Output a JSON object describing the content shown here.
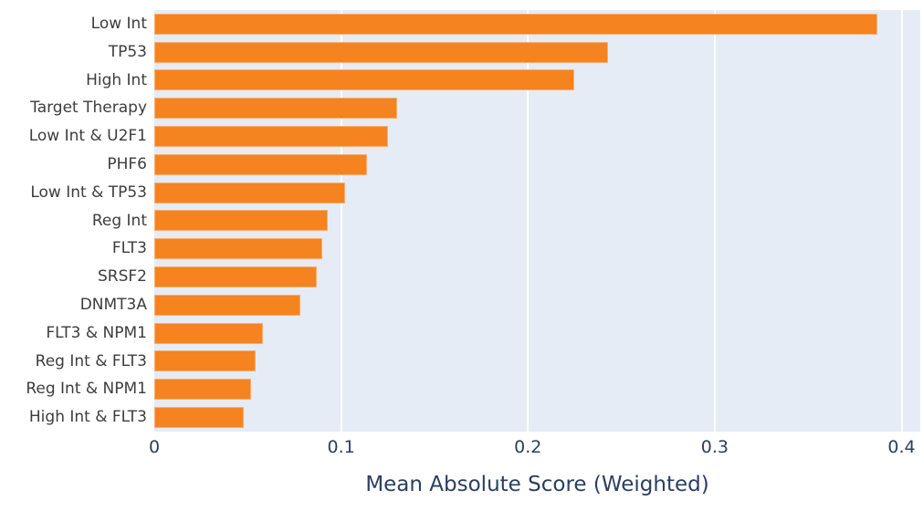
{
  "chart_data": {
    "type": "bar",
    "orientation": "horizontal",
    "title": "",
    "xlabel": "Mean Absolute Score (Weighted)",
    "ylabel": "",
    "categories": [
      "Low Int",
      "TP53",
      "High Int",
      "Target Therapy",
      "Low Int & U2F1",
      "PHF6",
      "Low Int & TP53",
      "Reg Int",
      "FLT3",
      "SRSF2",
      "DNMT3A",
      "FLT3 & NPM1",
      "Reg Int & FLT3",
      "Reg Int & NPM1",
      "High Int & FLT3"
    ],
    "values": [
      0.387,
      0.243,
      0.225,
      0.13,
      0.125,
      0.114,
      0.102,
      0.093,
      0.09,
      0.087,
      0.078,
      0.058,
      0.054,
      0.052,
      0.048
    ],
    "xlim": [
      0,
      0.41
    ],
    "xticks": [
      0,
      0.1,
      0.2,
      0.3,
      0.4
    ],
    "xtick_labels": [
      "0",
      "0.1",
      "0.2",
      "0.3",
      "0.4"
    ],
    "grid": true,
    "legend": false,
    "colors": {
      "bar": "#f58320",
      "plot_background": "#e5ecf6",
      "gridline": "#ffffff",
      "x_tick_text": "#2a3f5f",
      "y_tick_text": "#3d3d3d",
      "axis_title_text": "#2a3f5f",
      "page_background": "#ffffff"
    }
  }
}
